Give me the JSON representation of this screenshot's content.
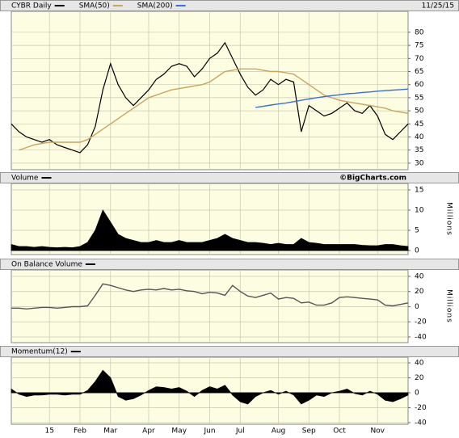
{
  "chart_data": [
    {
      "type": "line",
      "date": "11/25/15",
      "series": [
        {
          "name": "CYBR Daily",
          "color": "#000000",
          "values": [
            45,
            42,
            40,
            39,
            38,
            39,
            37,
            36,
            35,
            34,
            37,
            44,
            58,
            68,
            60,
            55,
            52,
            55,
            58,
            62,
            64,
            67,
            68,
            67,
            63,
            66,
            70,
            72,
            76,
            70,
            64,
            59,
            56,
            58,
            62,
            60,
            62,
            61,
            42,
            52,
            50,
            48,
            49,
            51,
            53,
            50,
            49,
            52,
            48,
            41,
            39,
            42,
            45
          ]
        },
        {
          "name": "SMA(50)",
          "color": "#c9a45c",
          "values": [
            null,
            35,
            36,
            37,
            37.5,
            38,
            38,
            38,
            38,
            38,
            39,
            41,
            43,
            45,
            47,
            49,
            51,
            53,
            55,
            56,
            57,
            58,
            58.5,
            59,
            59.5,
            60,
            61,
            63,
            65,
            65.5,
            66,
            66,
            66,
            65.5,
            65,
            65,
            64.5,
            64,
            62,
            60,
            58,
            56,
            55,
            54,
            53.5,
            53,
            52.5,
            52,
            51.5,
            51,
            50,
            49.5,
            49
          ]
        },
        {
          "name": "SMA(200)",
          "color": "#3a6fd8",
          "values": [
            null,
            null,
            null,
            null,
            null,
            null,
            null,
            null,
            null,
            null,
            null,
            null,
            null,
            null,
            null,
            null,
            null,
            null,
            null,
            null,
            null,
            null,
            null,
            null,
            null,
            null,
            null,
            null,
            null,
            null,
            null,
            null,
            51.3,
            51.7,
            52.2,
            52.6,
            53,
            53.5,
            54,
            54.5,
            55,
            55.4,
            55.8,
            56.1,
            56.5,
            56.7,
            57,
            57.2,
            57.5,
            57.7,
            57.9,
            58.1,
            58.3
          ]
        }
      ],
      "ylim": [
        27.5,
        88
      ],
      "yticks": [
        30,
        35,
        40,
        45,
        50,
        55,
        60,
        65,
        70,
        75,
        80
      ],
      "grid": true
    },
    {
      "type": "area",
      "title": "Volume",
      "credit": "©BigCharts.com",
      "ylabel": "Millions",
      "color": "#000000",
      "values": [
        1.5,
        1,
        1,
        0.8,
        1,
        0.8,
        0.7,
        0.8,
        0.7,
        1,
        2,
        5,
        10,
        7,
        4,
        3,
        2.5,
        2,
        2,
        2.5,
        2,
        2,
        2.5,
        2,
        2,
        2,
        2.5,
        3,
        4,
        3,
        2.5,
        2,
        2,
        1.8,
        1.5,
        1.8,
        1.5,
        1.5,
        3,
        2,
        1.8,
        1.5,
        1.5,
        1.5,
        1.5,
        1.5,
        1.3,
        1.2,
        1.2,
        1.5,
        1.5,
        1.2,
        1
      ],
      "ylim": [
        -1,
        16.6
      ],
      "yticks": [
        0,
        5,
        10,
        15
      ],
      "grid": true
    },
    {
      "type": "line",
      "title": "On Balance Volume",
      "ylabel": "Millions",
      "color": "#555555",
      "values": [
        -2,
        -2,
        -3,
        -2,
        -1,
        -1,
        -2,
        -1,
        0,
        0,
        1,
        15,
        30,
        28,
        25,
        22,
        20,
        22,
        23,
        22,
        24,
        22,
        23,
        21,
        20,
        17,
        19,
        18,
        15,
        28,
        20,
        14,
        12,
        15,
        18,
        10,
        12,
        11,
        5,
        6,
        2,
        2,
        5,
        12,
        13,
        12,
        11,
        10,
        9,
        2,
        1,
        3,
        5
      ],
      "ylim": [
        -47.5,
        48.5
      ],
      "yticks": [
        -40,
        -20,
        0,
        20,
        40
      ],
      "grid": true
    },
    {
      "type": "area",
      "title": "Momentum(12)",
      "color": "#000000",
      "values": [
        5,
        -2,
        -5,
        -3,
        -3,
        -2,
        -2,
        -3,
        -2,
        -2,
        3,
        15,
        30,
        20,
        -5,
        -10,
        -8,
        -3,
        3,
        8,
        7,
        5,
        7,
        2,
        -5,
        3,
        8,
        5,
        10,
        -3,
        -12,
        -15,
        -5,
        0,
        3,
        -2,
        2,
        -3,
        -15,
        -10,
        -3,
        -5,
        0,
        2,
        5,
        -1,
        -3,
        2,
        -2,
        -10,
        -12,
        -8,
        -3
      ],
      "ylim": [
        -42.2,
        47.6
      ],
      "yticks": [
        -40,
        -20,
        0,
        20,
        40
      ],
      "grid": true,
      "categories": [
        null,
        null,
        null,
        null,
        null,
        "15",
        null,
        null,
        null,
        "Feb",
        null,
        null,
        null,
        "Mar",
        null,
        null,
        null,
        null,
        "Apr",
        null,
        null,
        null,
        "May",
        null,
        null,
        null,
        "Jun",
        null,
        null,
        null,
        "Jul",
        null,
        null,
        null,
        null,
        "Aug",
        null,
        null,
        null,
        "Sep",
        null,
        null,
        null,
        "Oct",
        null,
        null,
        null,
        null,
        "Nov",
        null,
        null,
        null,
        null
      ]
    }
  ]
}
